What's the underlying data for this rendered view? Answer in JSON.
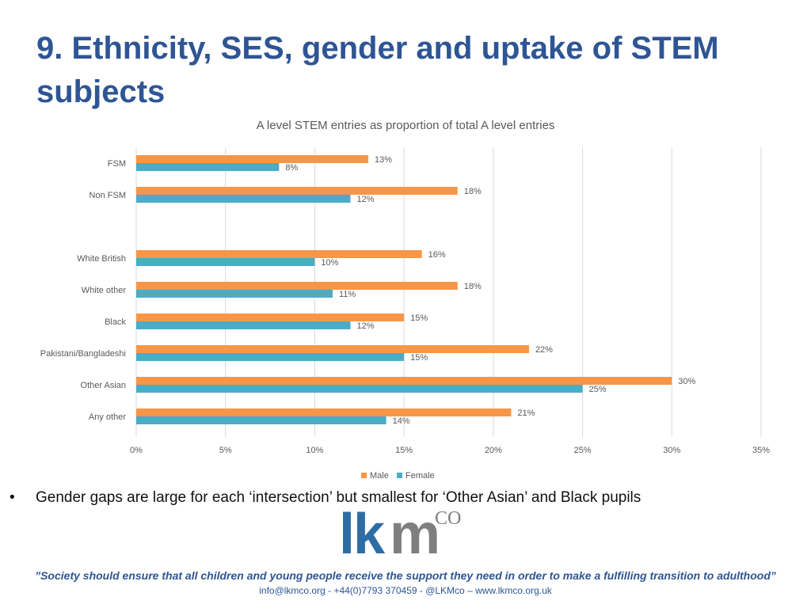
{
  "slide": {
    "title": "9. Ethnicity, SES, gender and uptake of STEM subjects",
    "bullet": "Gender gaps are large for each ‘intersection’ but smallest for ‘Other Asian’ and Black pupils",
    "bullet_marker": "•"
  },
  "logo": {
    "lk": "lk",
    "m": "m",
    "co": "CO"
  },
  "footer": {
    "quote": "”Society should ensure that all children and young people receive the support they need in order to make a fulfilling transition to adulthood”",
    "contact": "info@lkmco.org - +44(0)7793 370459 - @LKMco – www.lkmco.org.uk"
  },
  "chart_data": {
    "type": "bar",
    "orientation": "horizontal",
    "title": "A level STEM entries as proportion of total A level entries",
    "categories": [
      "FSM",
      "Non FSM",
      "",
      "White British",
      "White other",
      "Black",
      "Pakistani/Bangladeshi",
      "Other Asian",
      "Any other"
    ],
    "series": [
      {
        "name": "Male",
        "color": "#f79646",
        "values": [
          13,
          18,
          null,
          16,
          18,
          15,
          22,
          30,
          21
        ]
      },
      {
        "name": "Female",
        "color": "#4bacc6",
        "values": [
          8,
          12,
          null,
          10,
          11,
          12,
          15,
          25,
          14
        ]
      }
    ],
    "xlim": [
      0,
      35
    ],
    "xticks": [
      0,
      5,
      10,
      15,
      20,
      25,
      30,
      35
    ],
    "tick_suffix": "%",
    "grid": true,
    "legend": "bottom-center"
  }
}
